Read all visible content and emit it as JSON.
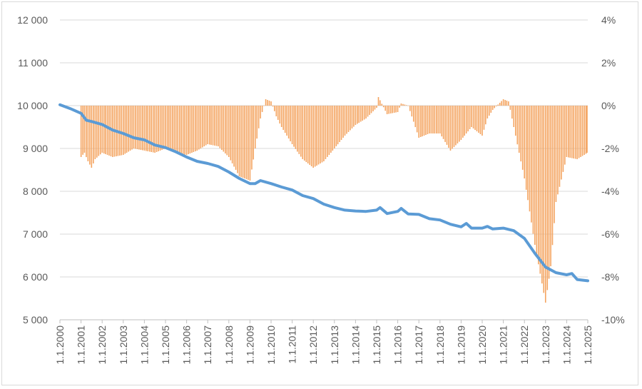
{
  "chart_data": {
    "type": "bar+line",
    "title": "",
    "xlabel": "",
    "ylabel_left": "",
    "ylabel_right": "",
    "x_ticks": [
      "1.1.2000",
      "1.1.2001",
      "1.1.2002",
      "1.1.2003",
      "1.1.2004",
      "1.1.2005",
      "1.1.2006",
      "1.1.2007",
      "1.1.2008",
      "1.1.2009",
      "1.1.2010",
      "1.1.2011",
      "1.1.2012",
      "1.1.2013",
      "1.1.2014",
      "1.1.2015",
      "1.1.2016",
      "1.1.2017",
      "1.1.2018",
      "1.1.2019",
      "1.1.2020",
      "1.1.2021",
      "1.1.2022",
      "1.1.2023",
      "1.1.2024",
      "1.1.2025"
    ],
    "left_axis": {
      "min": 5000,
      "max": 12000,
      "step": 1000,
      "tick_labels": [
        "5 000",
        "6 000",
        "7 000",
        "8 000",
        "9 000",
        "10 000",
        "11 000",
        "12 000"
      ]
    },
    "right_axis": {
      "min": -10,
      "max": 4,
      "step": 2,
      "tick_labels": [
        "-10%",
        "-8%",
        "-6%",
        "-4%",
        "-2%",
        "0%",
        "2%",
        "4%"
      ]
    },
    "grid": true,
    "legend": "none",
    "series": [
      {
        "type": "line",
        "axis": "left",
        "color": "#5b9bd5",
        "points": [
          [
            "2000-01-01",
            10020
          ],
          [
            "2000-07-01",
            9930
          ],
          [
            "2001-01-01",
            9820
          ],
          [
            "2001-04-01",
            9660
          ],
          [
            "2001-07-01",
            9630
          ],
          [
            "2002-01-01",
            9560
          ],
          [
            "2002-07-01",
            9430
          ],
          [
            "2003-01-01",
            9350
          ],
          [
            "2003-07-01",
            9250
          ],
          [
            "2004-01-01",
            9200
          ],
          [
            "2004-07-01",
            9080
          ],
          [
            "2005-01-01",
            9020
          ],
          [
            "2005-07-01",
            8920
          ],
          [
            "2006-01-01",
            8800
          ],
          [
            "2006-07-01",
            8700
          ],
          [
            "2007-01-01",
            8650
          ],
          [
            "2007-07-01",
            8580
          ],
          [
            "2008-01-01",
            8450
          ],
          [
            "2008-07-01",
            8300
          ],
          [
            "2009-01-01",
            8180
          ],
          [
            "2009-04-01",
            8180
          ],
          [
            "2009-07-01",
            8250
          ],
          [
            "2010-01-01",
            8180
          ],
          [
            "2010-07-01",
            8100
          ],
          [
            "2011-01-01",
            8030
          ],
          [
            "2011-07-01",
            7900
          ],
          [
            "2012-01-01",
            7830
          ],
          [
            "2012-07-01",
            7700
          ],
          [
            "2013-01-01",
            7620
          ],
          [
            "2013-07-01",
            7560
          ],
          [
            "2014-01-01",
            7540
          ],
          [
            "2014-07-01",
            7530
          ],
          [
            "2015-01-01",
            7560
          ],
          [
            "2015-03-01",
            7620
          ],
          [
            "2015-07-01",
            7480
          ],
          [
            "2016-01-01",
            7530
          ],
          [
            "2016-03-01",
            7600
          ],
          [
            "2016-07-01",
            7470
          ],
          [
            "2017-01-01",
            7460
          ],
          [
            "2017-07-01",
            7360
          ],
          [
            "2018-01-01",
            7330
          ],
          [
            "2018-07-01",
            7230
          ],
          [
            "2019-01-01",
            7170
          ],
          [
            "2019-04-01",
            7250
          ],
          [
            "2019-07-01",
            7140
          ],
          [
            "2020-01-01",
            7140
          ],
          [
            "2020-04-01",
            7180
          ],
          [
            "2020-07-01",
            7120
          ],
          [
            "2021-01-01",
            7140
          ],
          [
            "2021-07-01",
            7080
          ],
          [
            "2022-01-01",
            6900
          ],
          [
            "2022-07-01",
            6550
          ],
          [
            "2023-01-01",
            6230
          ],
          [
            "2023-07-01",
            6100
          ],
          [
            "2024-01-01",
            6050
          ],
          [
            "2024-04-01",
            6080
          ],
          [
            "2024-07-01",
            5940
          ],
          [
            "2025-01-01",
            5910
          ]
        ]
      },
      {
        "type": "bar",
        "axis": "right",
        "color": "#f4a460",
        "points": [
          [
            "2001-01-01",
            -2.4
          ],
          [
            "2001-03-01",
            -2.2
          ],
          [
            "2001-05-01",
            -2.6
          ],
          [
            "2001-07-01",
            -2.9
          ],
          [
            "2001-09-01",
            -2.5
          ],
          [
            "2002-01-01",
            -2.2
          ],
          [
            "2002-07-01",
            -2.4
          ],
          [
            "2003-01-01",
            -2.3
          ],
          [
            "2003-07-01",
            -2.0
          ],
          [
            "2004-01-01",
            -2.1
          ],
          [
            "2004-07-01",
            -2.2
          ],
          [
            "2005-01-01",
            -2.0
          ],
          [
            "2005-07-01",
            -2.2
          ],
          [
            "2006-01-01",
            -2.3
          ],
          [
            "2006-07-01",
            -2.1
          ],
          [
            "2007-01-01",
            -1.8
          ],
          [
            "2007-07-01",
            -1.9
          ],
          [
            "2008-01-01",
            -2.4
          ],
          [
            "2008-07-01",
            -3.3
          ],
          [
            "2009-01-01",
            -3.5
          ],
          [
            "2009-04-01",
            -2.0
          ],
          [
            "2009-07-01",
            -0.6
          ],
          [
            "2009-10-01",
            0.3
          ],
          [
            "2010-01-01",
            0.2
          ],
          [
            "2010-04-01",
            -0.5
          ],
          [
            "2010-07-01",
            -1.0
          ],
          [
            "2011-01-01",
            -1.8
          ],
          [
            "2011-07-01",
            -2.5
          ],
          [
            "2012-01-01",
            -2.9
          ],
          [
            "2012-07-01",
            -2.6
          ],
          [
            "2013-01-01",
            -2.0
          ],
          [
            "2013-07-01",
            -1.4
          ],
          [
            "2014-01-01",
            -0.9
          ],
          [
            "2014-07-01",
            -0.6
          ],
          [
            "2015-01-01",
            -0.1
          ],
          [
            "2015-02-01",
            0.4
          ],
          [
            "2015-07-01",
            -0.4
          ],
          [
            "2016-01-01",
            -0.3
          ],
          [
            "2016-03-01",
            0.1
          ],
          [
            "2016-07-01",
            0.0
          ],
          [
            "2017-01-01",
            -1.5
          ],
          [
            "2017-07-01",
            -1.3
          ],
          [
            "2018-01-01",
            -1.3
          ],
          [
            "2018-07-01",
            -2.1
          ],
          [
            "2019-01-01",
            -1.6
          ],
          [
            "2019-07-01",
            -1.0
          ],
          [
            "2020-01-01",
            -1.4
          ],
          [
            "2020-04-01",
            -0.6
          ],
          [
            "2020-07-01",
            -0.2
          ],
          [
            "2021-01-01",
            0.3
          ],
          [
            "2021-04-01",
            0.2
          ],
          [
            "2021-07-01",
            -1.0
          ],
          [
            "2022-01-01",
            -3.4
          ],
          [
            "2022-07-01",
            -6.5
          ],
          [
            "2023-01-01",
            -9.2
          ],
          [
            "2023-04-01",
            -7.5
          ],
          [
            "2023-07-01",
            -4.5
          ],
          [
            "2024-01-01",
            -2.4
          ],
          [
            "2024-07-01",
            -2.5
          ],
          [
            "2025-01-01",
            -2.2
          ]
        ]
      }
    ]
  }
}
